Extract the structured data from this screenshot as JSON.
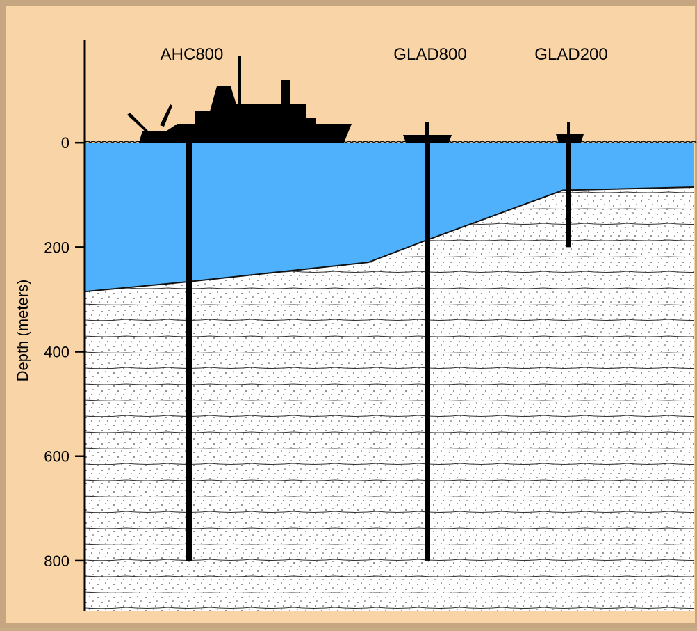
{
  "diagram": {
    "axis_label": "Depth  (meters)",
    "ylim": [
      -196,
      896
    ],
    "yticks": [
      0,
      200,
      400,
      600,
      800
    ],
    "sites": [
      {
        "label": "AHC800",
        "depth": 800
      },
      {
        "label": "GLAD800",
        "depth": 800
      },
      {
        "label": "GLAD200",
        "depth": 200
      }
    ],
    "seafloor_depths": [
      285,
      266,
      229,
      186,
      91,
      85
    ],
    "water_color": "#4fb1fb",
    "background_color": "#f9d4a6"
  }
}
